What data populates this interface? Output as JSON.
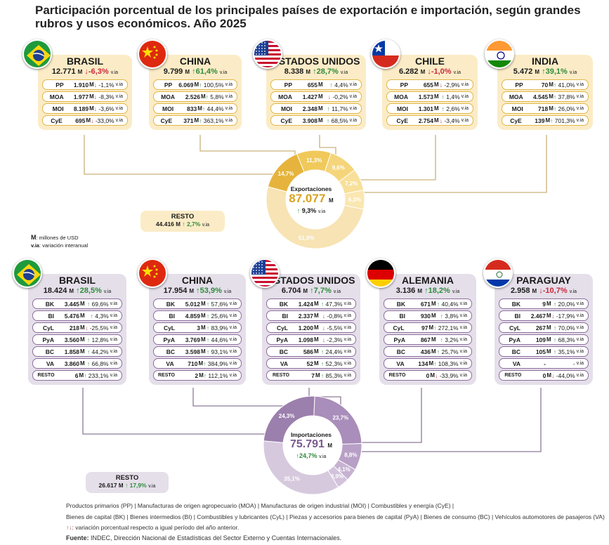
{
  "title": "Participación porcentual de los principales países de exportación e importación, según grandes rubros y usos económicos. Año 2025",
  "units": {
    "m_label": "M",
    "m_desc": ": millones de USD",
    "via_label": "v.ia",
    "via_desc": ": variación interanual"
  },
  "exports": {
    "countries": [
      {
        "name": "BRASIL",
        "flag": "brazil",
        "total": "12.771",
        "var": "-6,3%",
        "dir": "down",
        "rows": [
          [
            "PP",
            "1.910",
            "-1,1%",
            "down"
          ],
          [
            "MOA",
            "1.977",
            "-8,3%",
            "down"
          ],
          [
            "MOI",
            "8.189",
            "-3,6%",
            "down"
          ],
          [
            "CyE",
            "695",
            "-33,0%",
            "down"
          ]
        ]
      },
      {
        "name": "CHINA",
        "flag": "china",
        "total": "9.799",
        "var": "61,4%",
        "dir": "up",
        "rows": [
          [
            "PP",
            "6.069",
            "100,5%",
            "up"
          ],
          [
            "MOA",
            "2.526",
            "5,8%",
            "up"
          ],
          [
            "MOI",
            "833",
            "44,4%",
            "up"
          ],
          [
            "CyE",
            "371",
            "363,1%",
            "up"
          ]
        ]
      },
      {
        "name": "ESTADOS UNIDOS",
        "flag": "usa",
        "total": "8.338",
        "var": "28,7%",
        "dir": "up",
        "rows": [
          [
            "PP",
            "655",
            "4,4%",
            "up"
          ],
          [
            "MOA",
            "1.427",
            "-0,2%",
            "down"
          ],
          [
            "MOI",
            "2.348",
            "11,7%",
            "up"
          ],
          [
            "CyE",
            "3.908",
            "68,5%",
            "up"
          ]
        ]
      },
      {
        "name": "CHILE",
        "flag": "chile",
        "total": "6.282",
        "var": "-1,0%",
        "dir": "down",
        "rows": [
          [
            "PP",
            "655",
            "-2,9%",
            "down"
          ],
          [
            "MOA",
            "1.573",
            "1,4%",
            "up"
          ],
          [
            "MOI",
            "1.301",
            "2,6%",
            "up"
          ],
          [
            "CyE",
            "2.754",
            "-3,4%",
            "down"
          ]
        ]
      },
      {
        "name": "INDIA",
        "flag": "india",
        "total": "5.472",
        "var": "39,1%",
        "dir": "up",
        "rows": [
          [
            "PP",
            "70",
            "41,0%",
            "up"
          ],
          [
            "MOA",
            "4.545",
            "37,8%",
            "up"
          ],
          [
            "MOI",
            "718",
            "26,0%",
            "up"
          ],
          [
            "CyE",
            "139",
            "701,3%",
            "up"
          ]
        ]
      }
    ],
    "resto": {
      "label": "RESTO",
      "total": "44.416",
      "var": "2,7%",
      "dir": "up"
    },
    "donut": {
      "label": "Exportaciones",
      "total": "87.077",
      "var": "9,3%",
      "dir": "up"
    }
  },
  "imports": {
    "countries": [
      {
        "name": "BRASIL",
        "flag": "brazil",
        "total": "18.424",
        "var": "28,5%",
        "dir": "up",
        "rows": [
          [
            "BK",
            "3.445",
            "69,6%",
            "up"
          ],
          [
            "BI",
            "5.476",
            "4,3%",
            "up"
          ],
          [
            "CyL",
            "218",
            "-25,5%",
            "down"
          ],
          [
            "PyA",
            "3.560",
            "12,8%",
            "up"
          ],
          [
            "BC",
            "1.858",
            "44,2%",
            "up"
          ],
          [
            "VA",
            "3.860",
            "66,8%",
            "up"
          ],
          [
            "RESTO",
            "6",
            "233,1%",
            "up"
          ]
        ]
      },
      {
        "name": "CHINA",
        "flag": "china",
        "total": "17.954",
        "var": "53,9%",
        "dir": "up",
        "rows": [
          [
            "BK",
            "5.012",
            "57,6%",
            "up"
          ],
          [
            "BI",
            "4.859",
            "25,6%",
            "up"
          ],
          [
            "CyL",
            "3",
            "83,9%",
            "up"
          ],
          [
            "PyA",
            "3.769",
            "44,6%",
            "up"
          ],
          [
            "BC",
            "3.598",
            "93,1%",
            "up"
          ],
          [
            "VA",
            "710",
            "384,9%",
            "up"
          ],
          [
            "RESTO",
            "2",
            "112,1%",
            "up"
          ]
        ]
      },
      {
        "name": "ESTADOS UNIDOS",
        "flag": "usa",
        "total": "6.704",
        "var": "7,7%",
        "dir": "up",
        "rows": [
          [
            "BK",
            "1.424",
            "47,3%",
            "up"
          ],
          [
            "BI",
            "2.337",
            "-0,8%",
            "down"
          ],
          [
            "CyL",
            "1.200",
            "-5,5%",
            "down"
          ],
          [
            "PyA",
            "1.098",
            "-2,3%",
            "down"
          ],
          [
            "BC",
            "586",
            "24,4%",
            "up"
          ],
          [
            "VA",
            "52",
            "52,3%",
            "up"
          ],
          [
            "RESTO",
            "7",
            "85,3%",
            "up"
          ]
        ]
      },
      {
        "name": "ALEMANIA",
        "flag": "germany",
        "total": "3.136",
        "var": "18,2%",
        "dir": "up",
        "rows": [
          [
            "BK",
            "671",
            "40,4%",
            "up"
          ],
          [
            "BI",
            "930",
            "3,8%",
            "up"
          ],
          [
            "CyL",
            "97",
            "272,1%",
            "up"
          ],
          [
            "PyA",
            "867",
            "3,2%",
            "up"
          ],
          [
            "BC",
            "436",
            "25,7%",
            "up"
          ],
          [
            "VA",
            "134",
            "108,3%",
            "up"
          ],
          [
            "RESTO",
            "0",
            "-33,9%",
            "down"
          ]
        ]
      },
      {
        "name": "PARAGUAY",
        "flag": "paraguay",
        "total": "2.958",
        "var": "-10,7%",
        "dir": "down",
        "rows": [
          [
            "BK",
            "9",
            "20,0%",
            "up"
          ],
          [
            "BI",
            "2.467",
            "-17,9%",
            "down"
          ],
          [
            "CyL",
            "267",
            "70,0%",
            "up"
          ],
          [
            "PyA",
            "109",
            "68,3%",
            "up"
          ],
          [
            "BC",
            "105",
            "35,1%",
            "up"
          ],
          [
            "VA",
            "-",
            "-",
            ""
          ],
          [
            "RESTO",
            "0",
            "-44,0%",
            "down"
          ]
        ]
      }
    ],
    "resto": {
      "label": "RESTO",
      "total": "26.617",
      "var": "17,9%",
      "dir": "up"
    },
    "donut": {
      "label": "Importaciones",
      "total": "75.791",
      "var": "24,7%",
      "dir": "up"
    }
  },
  "chart_data": [
    {
      "type": "pie",
      "title": "Exportaciones",
      "center_value": "87.077 M",
      "categories": [
        "Brasil",
        "China",
        "Estados Unidos",
        "Chile",
        "India",
        "Resto"
      ],
      "values": [
        14.7,
        11.3,
        9.6,
        7.2,
        6.3,
        51.0
      ],
      "labels": [
        "14,7%",
        "11,3%",
        "9,6%",
        "7,2%",
        "6,3%",
        "51,0%"
      ],
      "colors": [
        "#e6b43c",
        "#f0c95a",
        "#f5d57a",
        "#f8e09a",
        "#fae7b0",
        "#f7e3b3"
      ]
    },
    {
      "type": "pie",
      "title": "Importaciones",
      "center_value": "75.791 M",
      "categories": [
        "Brasil",
        "China",
        "Estados Unidos",
        "Alemania",
        "Paraguay",
        "Resto"
      ],
      "values": [
        24.3,
        23.7,
        8.8,
        4.1,
        3.9,
        35.1
      ],
      "labels": [
        "24,3%",
        "23,7%",
        "8,8%",
        "4,1%",
        "3,9%",
        "35,1%"
      ],
      "colors": [
        "#9b7fad",
        "#a98dba",
        "#b89fc6",
        "#c6b2d1",
        "#d2c2db",
        "#d6c9dd"
      ]
    }
  ],
  "legend": {
    "line1": "Productos primarios (PP)  |  Manufacturas de origen agropecuario (MOA)  |  Manufacturas de origen industrial (MOI)  |  Combustibles y energía (CyE)  |",
    "line2": "Bienes de capital (BK)  |  Bienes intermedios (BI)  |  Combustibles y lubricantes (CyL)  |  Piezas y accesorios para bienes de capital (PyA)  |  Bienes de consumo (BC)  |  Vehículos automotores de pasajeros (VA)",
    "line3": ": variación porcentual respecto a igual período del año anterior.",
    "source_label": "Fuente:",
    "source": "INDEC, Dirección Nacional de Estadísticas del Sector Externo y Cuentas Internacionales."
  }
}
